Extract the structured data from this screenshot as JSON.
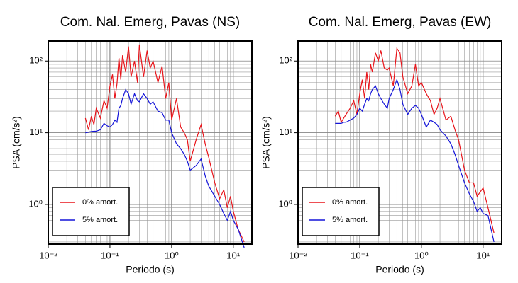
{
  "chart_data": [
    {
      "type": "line",
      "title": "Com. Nal. Emerg, Pavas (NS)",
      "xlabel": "Periodo (s)",
      "ylabel": "PSA (cm/s²)",
      "log_x": true,
      "log_y": true,
      "grid": true,
      "legend": "lower left",
      "xlim": [
        0.01,
        20
      ],
      "ylim": [
        0.28,
        190
      ],
      "xticks": [
        {
          "value": 0.01,
          "label": "10⁻²"
        },
        {
          "value": 0.1,
          "label": "10⁻¹"
        },
        {
          "value": 1,
          "label": "10⁰"
        },
        {
          "value": 10,
          "label": "10¹"
        }
      ],
      "yticks": [
        {
          "value": 1,
          "label": "10⁰"
        },
        {
          "value": 10,
          "label": "10¹"
        },
        {
          "value": 100,
          "label": "10²"
        }
      ],
      "x": [
        0.04,
        0.045,
        0.05,
        0.055,
        0.06,
        0.07,
        0.08,
        0.09,
        0.1,
        0.11,
        0.12,
        0.13,
        0.14,
        0.15,
        0.16,
        0.18,
        0.2,
        0.22,
        0.25,
        0.28,
        0.3,
        0.35,
        0.4,
        0.45,
        0.5,
        0.6,
        0.7,
        0.8,
        0.9,
        1.0,
        1.2,
        1.4,
        1.6,
        1.8,
        2,
        2.5,
        3,
        3.5,
        4,
        5,
        6,
        7,
        8,
        9,
        10,
        12,
        15
      ],
      "series": [
        {
          "name": "0% amort.",
          "color": "#e8141a",
          "values": [
            16,
            11,
            17,
            13,
            22,
            16,
            28,
            22,
            45,
            65,
            30,
            48,
            110,
            55,
            120,
            70,
            160,
            60,
            100,
            50,
            170,
            60,
            140,
            80,
            100,
            50,
            85,
            30,
            50,
            15,
            30,
            12,
            10,
            8,
            4,
            8,
            13,
            7,
            4.5,
            2,
            1.2,
            1.6,
            0.9,
            1.3,
            0.8,
            0.45,
            0.3
          ]
        },
        {
          "name": "5% amort.",
          "color": "#1414d8",
          "values": [
            10,
            10.2,
            10.4,
            10.5,
            10.5,
            11,
            13.5,
            12.5,
            12,
            13,
            15,
            14,
            22,
            24,
            30,
            40,
            35,
            25,
            35,
            28,
            27,
            35,
            30,
            25,
            27,
            20,
            19,
            15,
            15,
            10,
            7,
            6,
            5,
            4,
            3,
            3.5,
            4.3,
            2.5,
            1.8,
            1.3,
            1,
            0.75,
            0.6,
            0.8,
            0.6,
            0.45,
            0.25
          ]
        }
      ]
    },
    {
      "type": "line",
      "title": "Com. Nal. Emerg, Pavas (EW)",
      "xlabel": "Periodo (s)",
      "ylabel": "PSA (cm/s²)",
      "log_x": true,
      "log_y": true,
      "grid": true,
      "legend": "lower left",
      "xlim": [
        0.01,
        20
      ],
      "ylim": [
        0.28,
        190
      ],
      "xticks": [
        {
          "value": 0.01,
          "label": "10⁻²"
        },
        {
          "value": 0.1,
          "label": "10⁻¹"
        },
        {
          "value": 1,
          "label": "10⁰"
        },
        {
          "value": 10,
          "label": "10¹"
        }
      ],
      "yticks": [
        {
          "value": 1,
          "label": "10⁰"
        },
        {
          "value": 10,
          "label": "10¹"
        },
        {
          "value": 100,
          "label": "10²"
        }
      ],
      "x": [
        0.04,
        0.045,
        0.05,
        0.055,
        0.06,
        0.07,
        0.08,
        0.09,
        0.1,
        0.11,
        0.12,
        0.13,
        0.14,
        0.15,
        0.16,
        0.18,
        0.2,
        0.22,
        0.25,
        0.28,
        0.3,
        0.35,
        0.4,
        0.45,
        0.5,
        0.6,
        0.7,
        0.8,
        0.9,
        1.0,
        1.2,
        1.4,
        1.6,
        1.8,
        2,
        2.5,
        3,
        3.5,
        4,
        5,
        6,
        7,
        8,
        9,
        10,
        12,
        15
      ],
      "series": [
        {
          "name": "0% amort.",
          "color": "#e8141a",
          "values": [
            17,
            20,
            14,
            16,
            18,
            22,
            28,
            18,
            35,
            55,
            30,
            70,
            40,
            90,
            70,
            130,
            100,
            140,
            80,
            75,
            80,
            45,
            150,
            130,
            60,
            35,
            45,
            90,
            45,
            50,
            35,
            28,
            18,
            22,
            30,
            15,
            17,
            11,
            8,
            3,
            2,
            2,
            1.3,
            1.5,
            1.7,
            0.9,
            0.4
          ]
        },
        {
          "name": "5% amort.",
          "color": "#1414d8",
          "values": [
            13.5,
            13.5,
            13.5,
            14,
            14,
            15,
            16,
            18,
            22,
            20,
            25,
            30,
            28,
            35,
            40,
            45,
            35,
            30,
            25,
            22,
            30,
            40,
            55,
            40,
            25,
            18,
            22,
            24,
            22,
            18,
            12,
            15,
            14,
            13,
            11,
            9,
            7,
            5,
            3.5,
            2,
            1.4,
            1.1,
            0.8,
            0.9,
            0.75,
            0.7,
            0.3
          ]
        }
      ]
    }
  ]
}
